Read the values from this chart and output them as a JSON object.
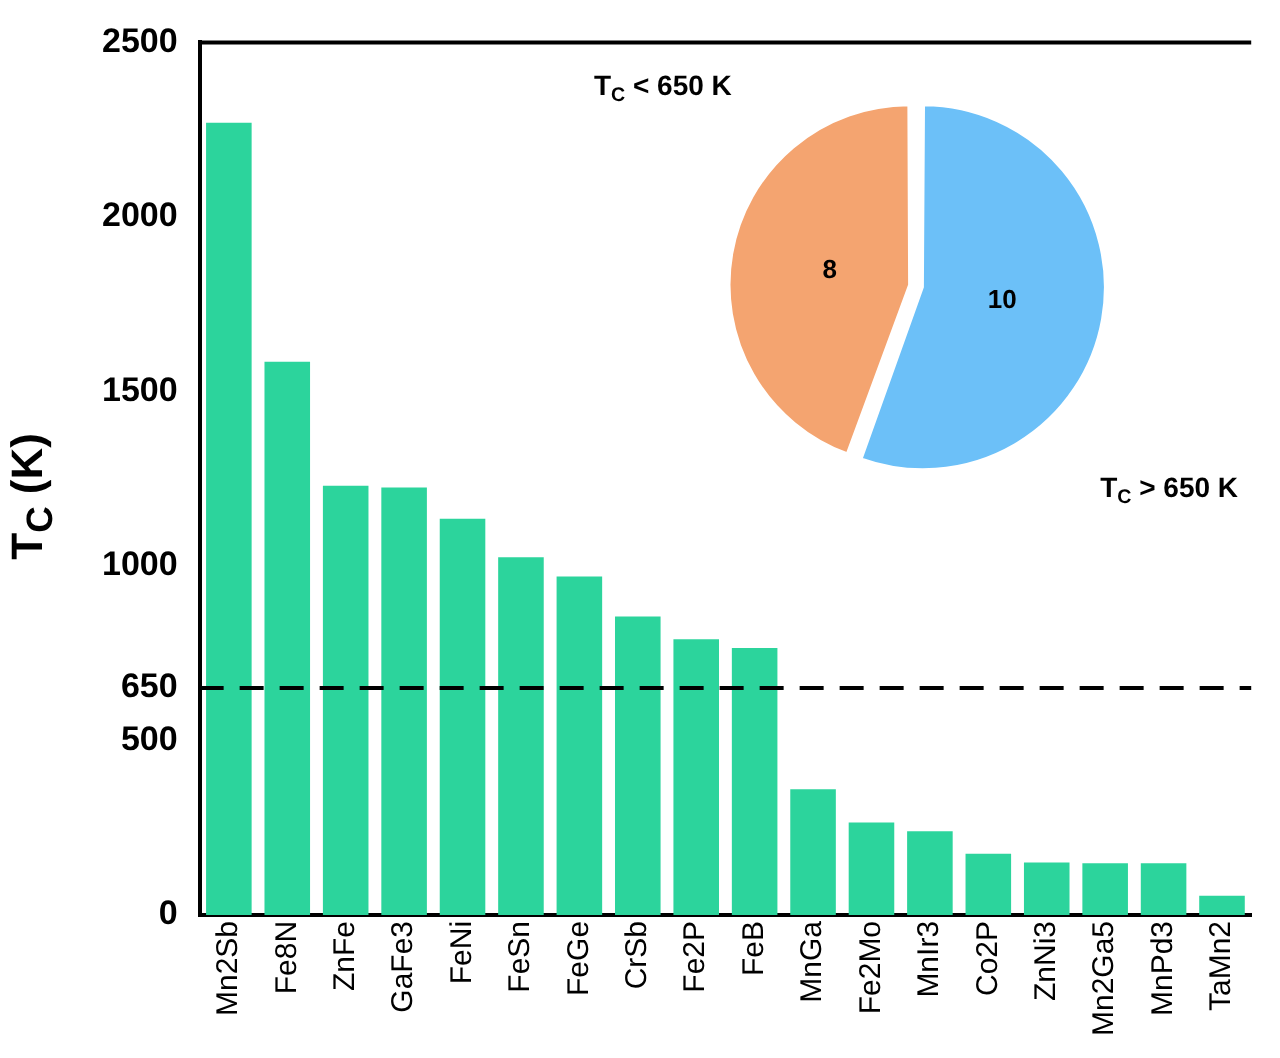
{
  "chart_data": [
    {
      "type": "bar",
      "ylabel": "T$_{C}$ (K)",
      "categories": [
        "Mn2Sb",
        "Fe8N",
        "ZnFe",
        "GaFe3",
        "FeNi",
        "FeSn",
        "FeGe",
        "CrSb",
        "Fe2P",
        "FeB",
        "MnGa",
        "Fe2Mo",
        "MnIr3",
        "Co2P",
        "ZnNi3",
        "Mn2Ga5",
        "MnPd3",
        "TaMn2"
      ],
      "values": [
        2270,
        1585,
        1230,
        1225,
        1135,
        1025,
        970,
        855,
        790,
        765,
        360,
        265,
        240,
        175,
        150,
        148,
        148,
        55
      ],
      "color": "#2cd49c",
      "ylim": [
        0,
        2500
      ],
      "yticks": [
        0,
        500,
        650,
        1000,
        1500,
        2000,
        2500
      ],
      "grid": false,
      "legend": false,
      "ref_lines": [
        {
          "axis": "y",
          "value": 650,
          "line_style": "dashed",
          "color": "#000000"
        }
      ]
    },
    {
      "type": "pie",
      "categories": [
        "T$_{C}$ < 650 K",
        "T$_{C}$ > 650 K"
      ],
      "values": [
        8,
        10
      ],
      "colors": [
        "#f4a470",
        "#6cc0f8"
      ],
      "data_labels": true,
      "legend": false
    }
  ]
}
